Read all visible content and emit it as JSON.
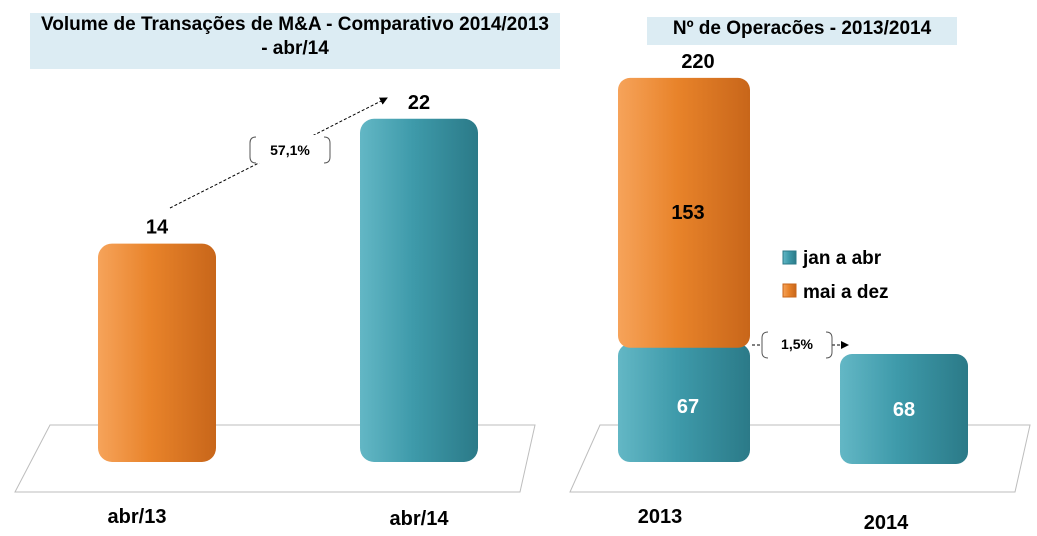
{
  "charts": {
    "left_title": "Volume de Transações de M&A - Comparativo 2014/2013",
    "left_subtitle": "- abr/14",
    "right_title": "Nº de Operacões  - 2013/2014"
  },
  "chart_data": [
    {
      "type": "bar",
      "title": "Volume de Transações de M&A - Comparativo 2014/2013 - abr/14",
      "categories": [
        "abr/13",
        "abr/14"
      ],
      "values": [
        14,
        22
      ],
      "value_labels": [
        "14",
        "22"
      ],
      "colors": [
        "#e8832a",
        "#3e9aaa"
      ],
      "annotation": "57,1%",
      "ylim": [
        0,
        25
      ]
    },
    {
      "type": "bar",
      "stacked": true,
      "title": "Nº de Operacões  - 2013/2014",
      "categories": [
        "2013",
        "2014"
      ],
      "series": [
        {
          "name": "jan a abr",
          "values": [
            67,
            68
          ],
          "color": "#3e9aaa"
        },
        {
          "name": "mai a dez",
          "values": [
            153,
            0
          ],
          "color": "#e8832a"
        }
      ],
      "value_labels": [
        [
          "67",
          "68"
        ],
        [
          "153",
          ""
        ]
      ],
      "totals": [
        "220",
        ""
      ],
      "annotation": "1,5%",
      "legend": "right",
      "ylim": [
        0,
        250
      ]
    }
  ]
}
